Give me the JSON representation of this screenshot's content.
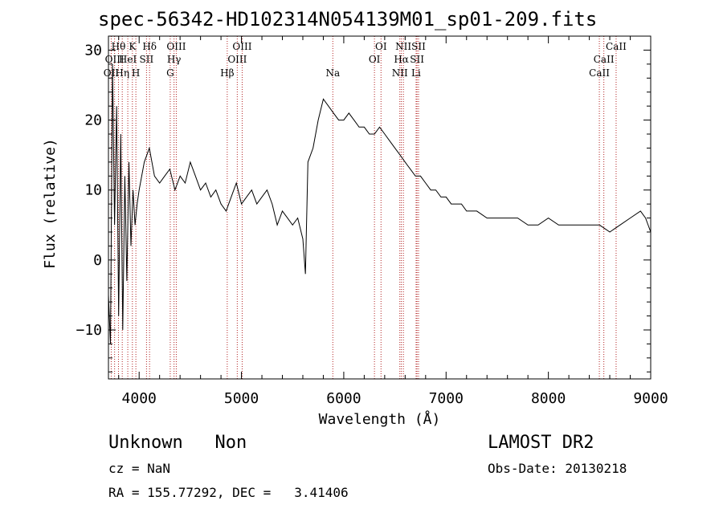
{
  "header": {
    "title": "spec-56342-HD102314N054139M01_sp01-209.fits"
  },
  "footer": {
    "object_class": "Unknown   Non",
    "survey": "LAMOST DR2",
    "cz": "cz = NaN",
    "obs_date": "Obs-Date: 20130218",
    "coords": "RA = 155.77292, DEC =   3.41406"
  },
  "chart_data": {
    "type": "line",
    "xlabel": "Wavelength (Å)",
    "ylabel": "Flux (relative)",
    "xlim": [
      3700,
      9000
    ],
    "ylim": [
      -17,
      32
    ],
    "xticks": [
      4000,
      5000,
      6000,
      7000,
      8000,
      9000
    ],
    "xtick_labels": [
      "4000",
      "5000",
      "6000",
      "7000",
      "8000",
      "9000"
    ],
    "yticks": [
      -10,
      0,
      10,
      20,
      30
    ],
    "ytick_labels": [
      "−10",
      "0",
      "10",
      "20",
      "30"
    ],
    "colors": {
      "spectrum": "#000000",
      "line_markers": "#b22222",
      "axes": "#000000"
    },
    "series": [
      {
        "x": [
          3700,
          3720,
          3740,
          3760,
          3780,
          3800,
          3820,
          3840,
          3860,
          3880,
          3900,
          3920,
          3940,
          3960,
          3980,
          4000,
          4050,
          4100,
          4150,
          4200,
          4250,
          4300,
          4350,
          4400,
          4450,
          4500,
          4550,
          4600,
          4650,
          4700,
          4750,
          4800,
          4850,
          4900,
          4950,
          5000,
          5050,
          5100,
          5150,
          5200,
          5250,
          5300,
          5350,
          5400,
          5450,
          5500,
          5550,
          5600,
          5625,
          5650,
          5700,
          5750,
          5800,
          5850,
          5900,
          5950,
          6000,
          6050,
          6100,
          6150,
          6200,
          6250,
          6300,
          6350,
          6400,
          6450,
          6500,
          6550,
          6600,
          6650,
          6700,
          6750,
          6800,
          6850,
          6900,
          6950,
          7000,
          7050,
          7100,
          7150,
          7200,
          7300,
          7400,
          7500,
          7600,
          7700,
          7800,
          7900,
          8000,
          8100,
          8200,
          8300,
          8400,
          8500,
          8600,
          8700,
          8800,
          8900,
          8950,
          9000
        ],
        "y": [
          -5,
          -12,
          28,
          5,
          22,
          -8,
          18,
          -10,
          12,
          -3,
          14,
          2,
          10,
          5,
          8,
          10,
          14,
          16,
          12,
          11,
          12,
          13,
          10,
          12,
          11,
          14,
          12,
          10,
          11,
          9,
          10,
          8,
          7,
          9,
          11,
          8,
          9,
          10,
          8,
          9,
          10,
          8,
          5,
          7,
          6,
          5,
          6,
          3,
          -2,
          14,
          16,
          20,
          23,
          22,
          21,
          20,
          20,
          21,
          20,
          19,
          19,
          18,
          18,
          19,
          18,
          17,
          16,
          15,
          14,
          13,
          12,
          12,
          11,
          10,
          10,
          9,
          9,
          8,
          8,
          8,
          7,
          7,
          6,
          6,
          6,
          6,
          5,
          5,
          6,
          5,
          5,
          5,
          5,
          5,
          4,
          5,
          6,
          7,
          6,
          4
        ]
      }
    ],
    "spectral_lines": [
      {
        "label": "OII",
        "wavelength": 3727,
        "row": 3
      },
      {
        "label": "Hθ",
        "wavelength": 3798,
        "row": 1
      },
      {
        "label": "OIII",
        "wavelength": 3760,
        "row": 2
      },
      {
        "label": "Hη",
        "wavelength": 3835,
        "row": 3
      },
      {
        "label": "HeI",
        "wavelength": 3889,
        "row": 2
      },
      {
        "label": "K",
        "wavelength": 3934,
        "row": 1
      },
      {
        "label": "H",
        "wavelength": 3968,
        "row": 3
      },
      {
        "label": "SII",
        "wavelength": 4072,
        "row": 2
      },
      {
        "label": "Hδ",
        "wavelength": 4102,
        "row": 1
      },
      {
        "label": "G",
        "wavelength": 4304,
        "row": 3
      },
      {
        "label": "Hγ",
        "wavelength": 4341,
        "row": 2
      },
      {
        "label": "OIII",
        "wavelength": 4363,
        "row": 1
      },
      {
        "label": "Hβ",
        "wavelength": 4861,
        "row": 3
      },
      {
        "label": "OIII",
        "wavelength": 4959,
        "row": 2
      },
      {
        "label": "OIII",
        "wavelength": 5007,
        "row": 1
      },
      {
        "label": "Na",
        "wavelength": 5893,
        "row": 3
      },
      {
        "label": "OI",
        "wavelength": 6300,
        "row": 2
      },
      {
        "label": "OI",
        "wavelength": 6364,
        "row": 1
      },
      {
        "label": "NII",
        "wavelength": 6548,
        "row": 3
      },
      {
        "label": "Hα",
        "wavelength": 6563,
        "row": 2
      },
      {
        "label": "NII",
        "wavelength": 6583,
        "row": 1
      },
      {
        "label": "Li",
        "wavelength": 6707,
        "row": 3
      },
      {
        "label": "SII",
        "wavelength": 6716,
        "row": 2
      },
      {
        "label": "SII",
        "wavelength": 6731,
        "row": 1
      },
      {
        "label": "CaII",
        "wavelength": 8498,
        "row": 3
      },
      {
        "label": "CaII",
        "wavelength": 8542,
        "row": 2
      },
      {
        "label": "CaII",
        "wavelength": 8662,
        "row": 1
      }
    ]
  }
}
